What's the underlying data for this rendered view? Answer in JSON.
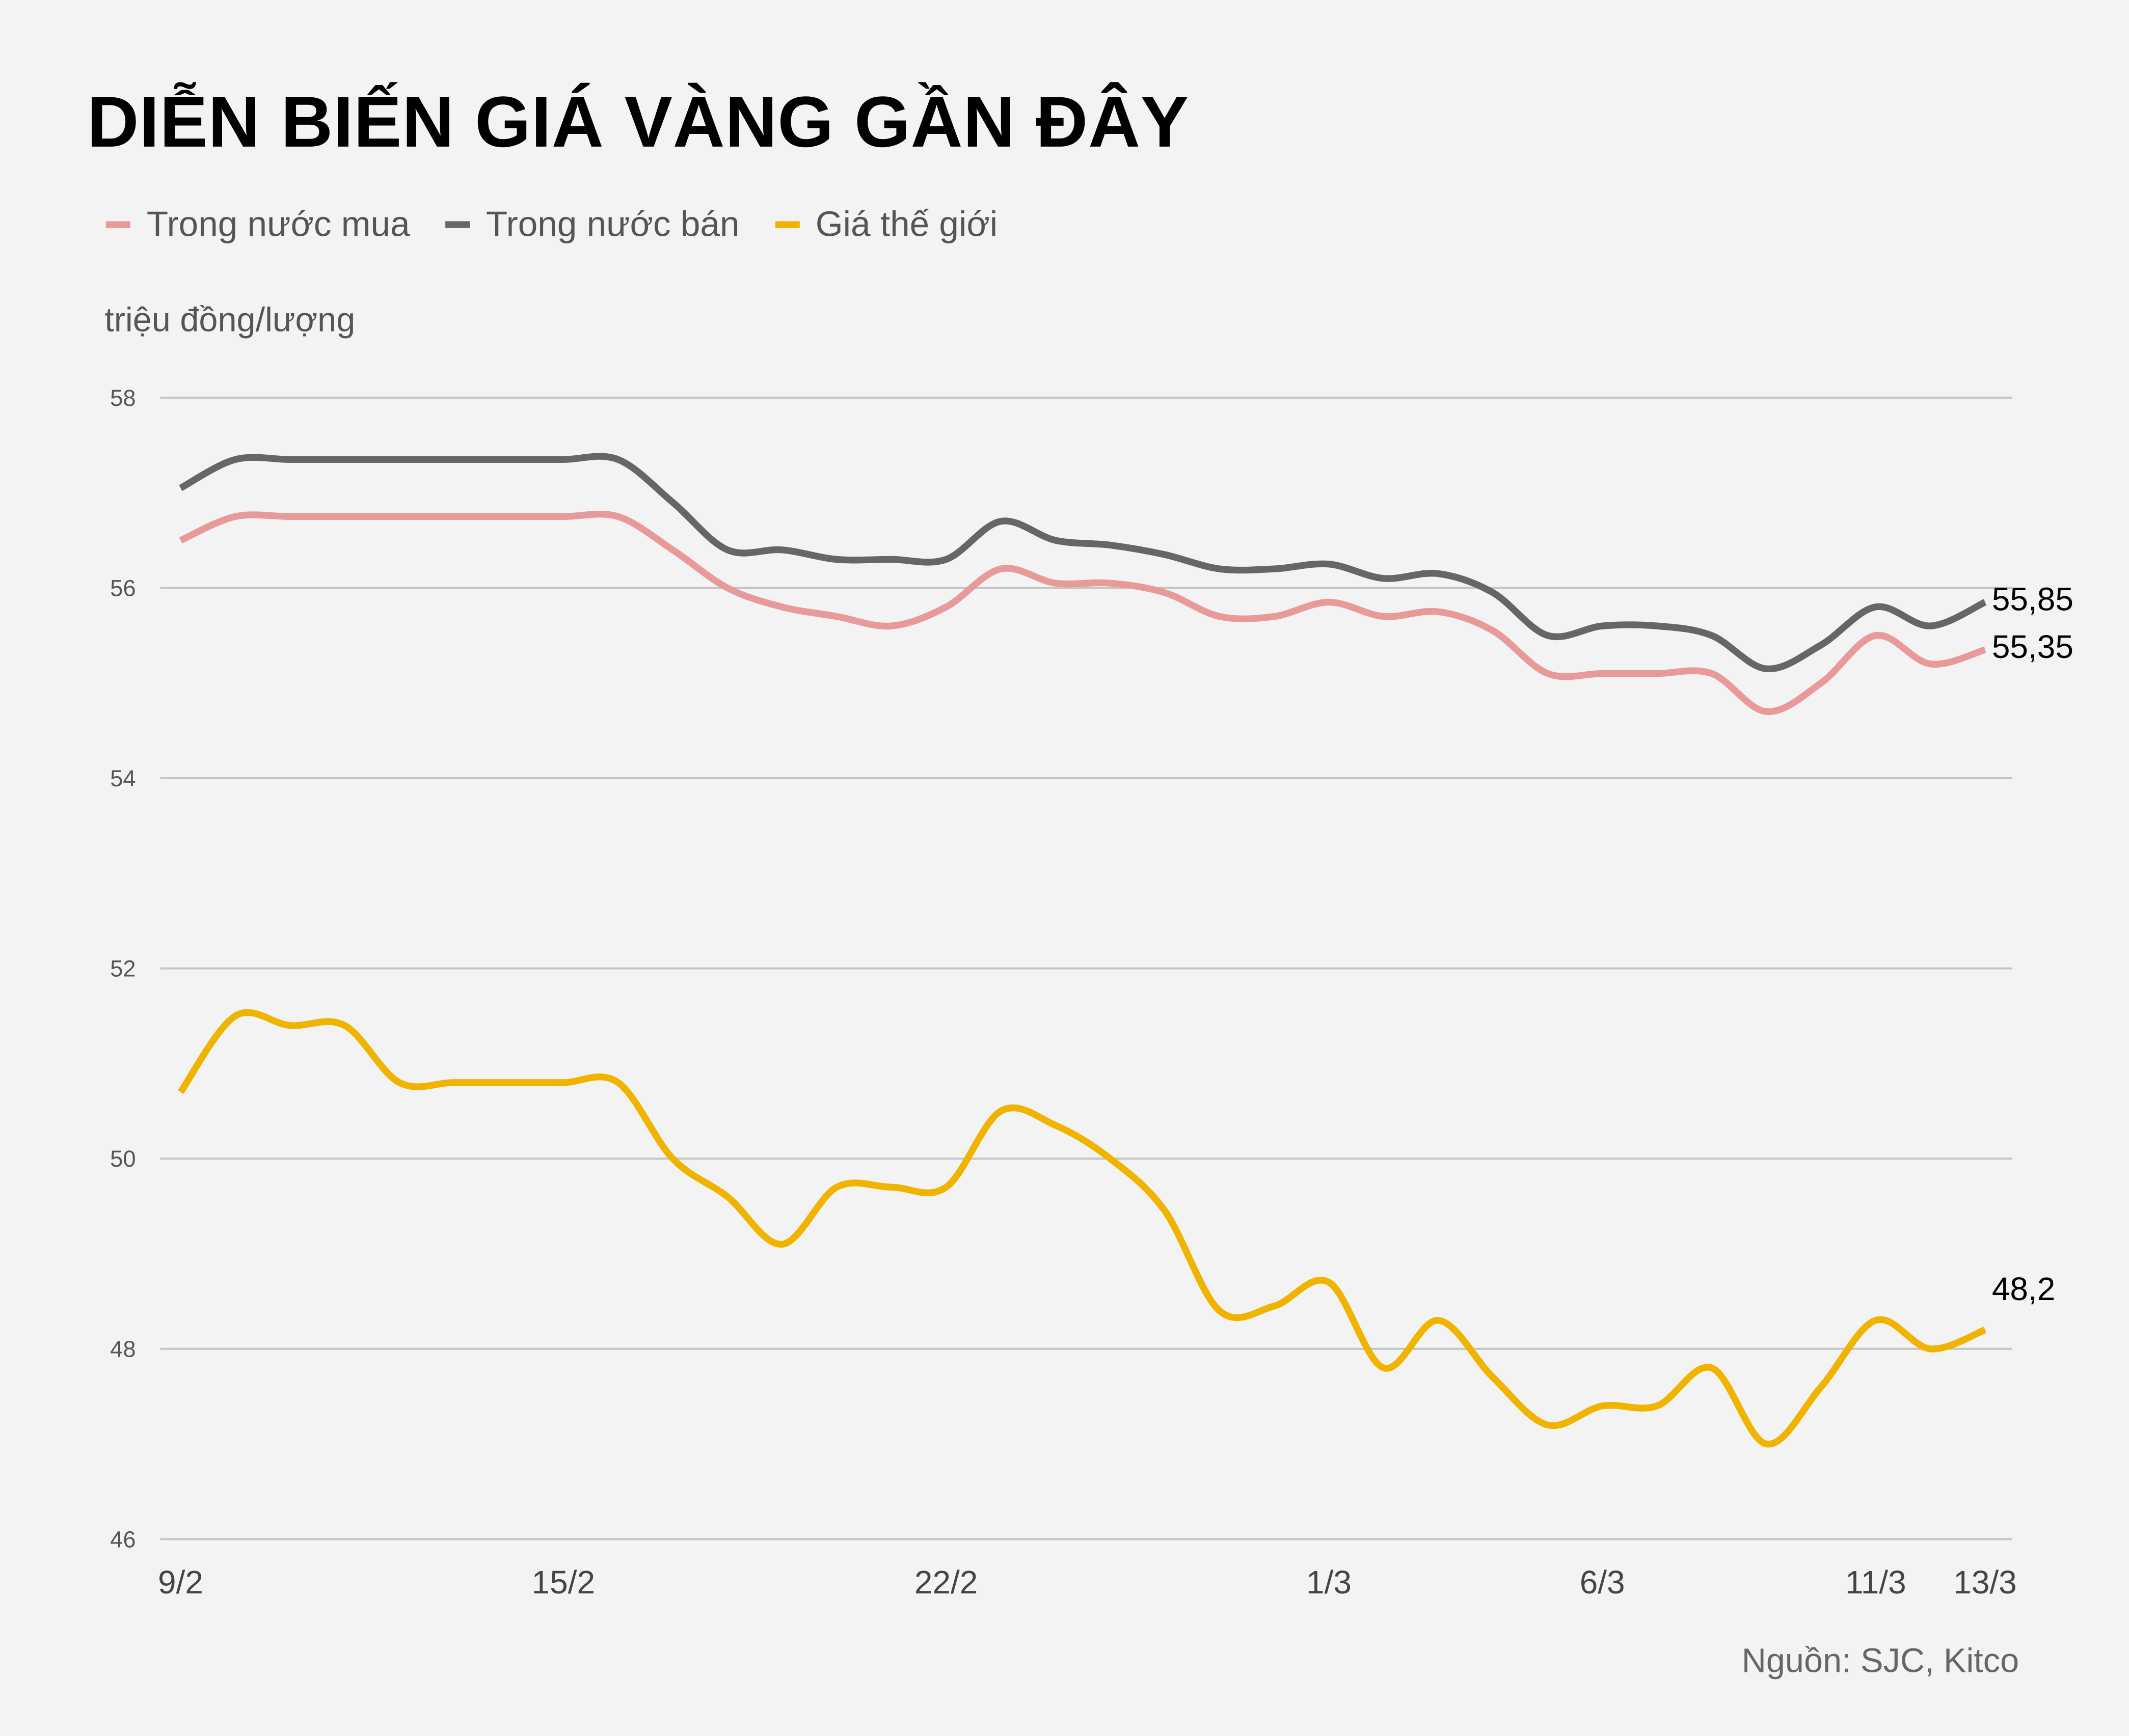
{
  "chart_data": {
    "type": "line",
    "title": "DIỄN BIẾN GIÁ VÀNG GẦN ĐÂY",
    "ylabel": "triệu đồng/lượng",
    "source": "Nguồn: SJC, Kitco",
    "ylim": [
      46,
      58
    ],
    "yticks": [
      "46",
      "48",
      "50",
      "52",
      "54",
      "56",
      "58"
    ],
    "grid": true,
    "legend_position": "top-left",
    "categories": [
      "9/2",
      "",
      "",
      "",
      "",
      "",
      "",
      "15/2",
      "",
      "",
      "",
      "",
      "",
      "",
      "22/2",
      "",
      "",
      "",
      "",
      "",
      "",
      "1/3",
      "",
      "",
      "",
      "",
      "6/3",
      "",
      "",
      "",
      "",
      "11/3",
      "",
      "13/3"
    ],
    "series": [
      {
        "name": "Trong nước mua",
        "color": "#e89a9a",
        "end_label": "55,35",
        "values": [
          56.5,
          56.75,
          56.75,
          56.75,
          56.75,
          56.75,
          56.75,
          56.75,
          56.75,
          56.4,
          56.0,
          55.8,
          55.7,
          55.6,
          55.8,
          56.2,
          56.05,
          56.05,
          55.95,
          55.7,
          55.7,
          55.85,
          55.7,
          55.75,
          55.55,
          55.1,
          55.1,
          55.1,
          55.1,
          54.7,
          55.0,
          55.5,
          55.2,
          55.35
        ]
      },
      {
        "name": "Trong nước bán",
        "color": "#666666",
        "end_label": "55,85",
        "values": [
          57.05,
          57.35,
          57.35,
          57.35,
          57.35,
          57.35,
          57.35,
          57.35,
          57.35,
          56.9,
          56.4,
          56.4,
          56.3,
          56.3,
          56.3,
          56.7,
          56.5,
          56.45,
          56.35,
          56.2,
          56.2,
          56.25,
          56.1,
          56.15,
          55.95,
          55.5,
          55.6,
          55.6,
          55.5,
          55.15,
          55.4,
          55.8,
          55.6,
          55.85
        ]
      },
      {
        "name": "Giá thế giới",
        "color": "#f0b400",
        "end_label": "48,2",
        "values": [
          50.7,
          51.5,
          51.4,
          51.4,
          50.8,
          50.8,
          50.8,
          50.8,
          50.8,
          50.0,
          49.6,
          49.1,
          49.7,
          49.7,
          49.7,
          50.5,
          50.35,
          50.0,
          49.45,
          48.4,
          48.45,
          48.7,
          47.8,
          48.3,
          47.7,
          47.2,
          47.4,
          47.4,
          47.8,
          47.0,
          47.6,
          48.3,
          48.0,
          48.2
        ]
      }
    ]
  }
}
